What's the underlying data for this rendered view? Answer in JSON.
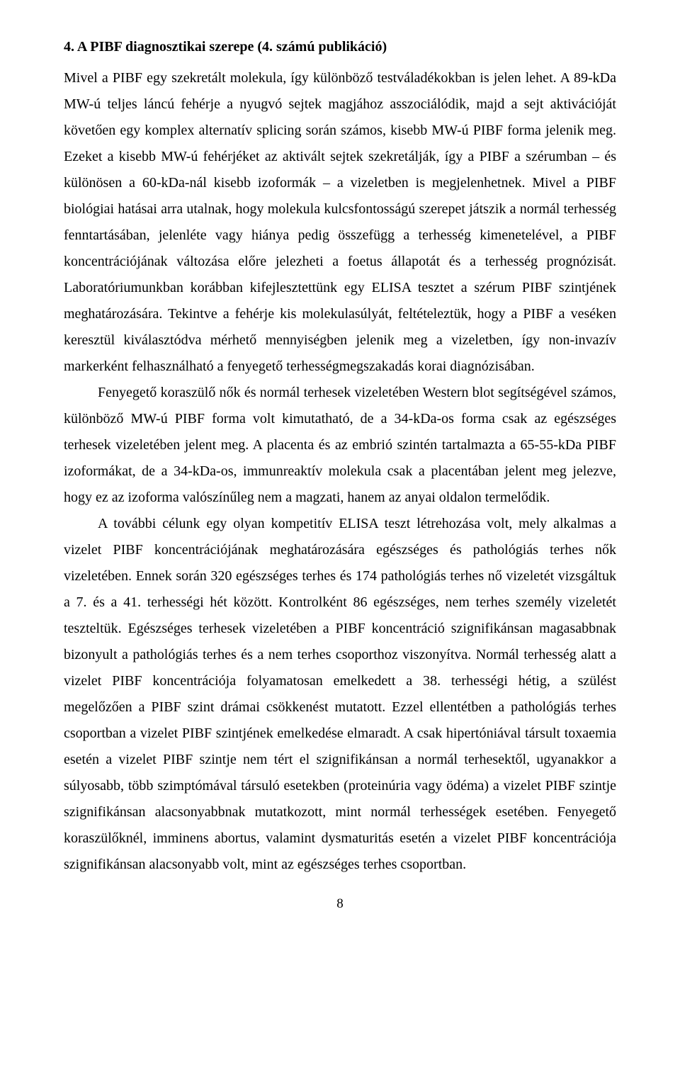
{
  "heading": "4. A PIBF diagnosztikai szerepe (4. számú publikáció)",
  "paragraphs": [
    "Mivel a PIBF egy szekretált molekula, így különböző testváladékokban is jelen lehet. A 89-kDa MW-ú teljes láncú fehérje a nyugvó sejtek magjához asszociálódik, majd a sejt aktivációját követően egy komplex alternatív splicing során számos, kisebb MW-ú PIBF forma jelenik meg. Ezeket a kisebb MW-ú fehérjéket az aktivált sejtek szekretálják, így a PIBF a szérumban – és különösen a 60-kDa-nál kisebb izoformák – a vizeletben is megjelenhetnek. Mivel a PIBF biológiai hatásai arra utalnak, hogy molekula kulcsfontosságú szerepet játszik a normál terhesség fenntartásában, jelenléte vagy hiánya pedig összefügg a terhesség kimenetelével, a PIBF koncentrációjának változása előre jelezheti a foetus állapotát és a terhesség prognózisát. Laboratóriumunkban korábban kifejlesztettünk egy ELISA tesztet a szérum PIBF szintjének meghatározására. Tekintve a fehérje kis molekulasúlyát, feltételeztük, hogy a PIBF a veséken keresztül kiválasztódva mérhető mennyiségben jelenik meg a vizeletben, így non-invazív markerként felhasználható a fenyegető terhességmegszakadás korai diagnózisában.",
    "Fenyegető koraszülő nők és normál terhesek vizeletében Western blot segítségével számos, különböző MW-ú PIBF forma volt kimutatható, de a 34-kDa-os forma csak az egészséges terhesek vizeletében jelent meg. A placenta és az embrió szintén tartalmazta a 65-55-kDa PIBF izoformákat, de a 34-kDa-os, immunreaktív molekula csak a placentában jelent meg jelezve, hogy ez az izoforma valószínűleg nem a magzati, hanem az anyai oldalon termelődik.",
    "A további célunk egy olyan kompetitív ELISA teszt létrehozása volt, mely alkalmas a vizelet PIBF koncentrációjának meghatározására egészséges és pathológiás terhes nők vizeletében. Ennek során 320 egészséges terhes és 174 pathológiás terhes nő vizeletét vizsgáltuk a 7. és a 41. terhességi hét között. Kontrolként 86 egészséges, nem terhes személy vizeletét teszteltük. Egészséges terhesek vizeletében a PIBF koncentráció szignifikánsan magasabbnak bizonyult a pathológiás terhes és a nem terhes csoporthoz viszonyítva. Normál terhesség alatt a vizelet PIBF koncentrációja folyamatosan emelkedett a 38. terhességi hétig, a szülést megelőzően a PIBF szint drámai csökkenést mutatott. Ezzel ellentétben a pathológiás terhes csoportban a vizelet PIBF szintjének emelkedése elmaradt. A csak hipertóniával társult toxaemia esetén a vizelet PIBF szintje nem tért el szignifikánsan a normál terhesektől, ugyanakkor a súlyosabb, több szimptómával társuló esetekben (proteinúria vagy ödéma) a vizelet PIBF szintje szignifikánsan alacsonyabbnak mutatkozott, mint normál terhességek esetében. Fenyegető koraszülőknél, imminens abortus, valamint dysmaturitás esetén a vizelet PIBF koncentrációja szignifikánsan alacsonyabb volt, mint az egészséges terhes csoportban."
  ],
  "pageNumber": "8"
}
